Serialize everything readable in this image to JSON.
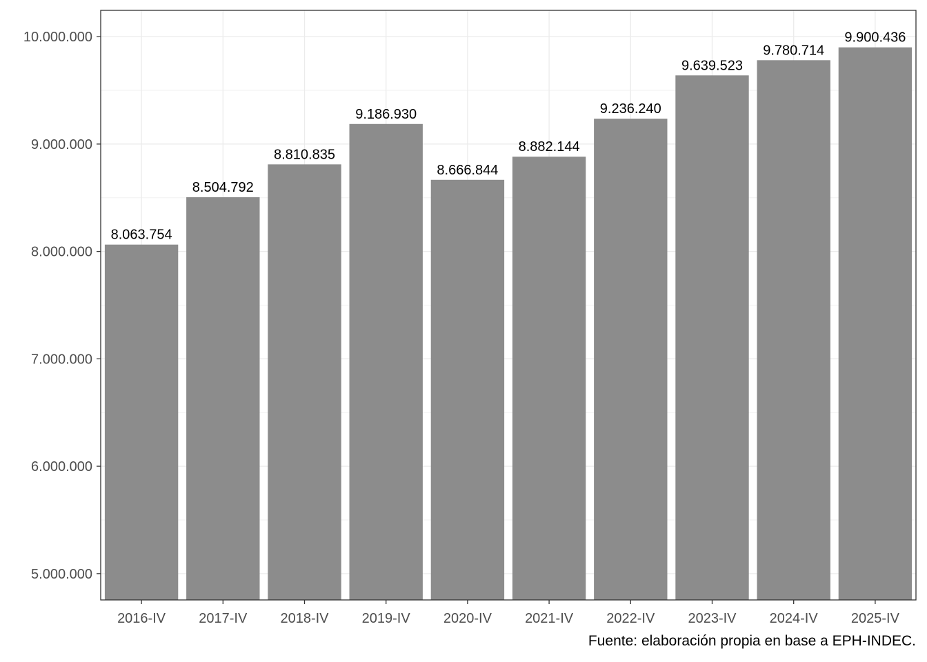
{
  "chart_data": {
    "type": "bar",
    "title": "",
    "xlabel": "",
    "ylabel": "",
    "categories": [
      "2016-IV",
      "2017-IV",
      "2018-IV",
      "2019-IV",
      "2020-IV",
      "2021-IV",
      "2022-IV",
      "2023-IV",
      "2024-IV",
      "2025-IV"
    ],
    "values": [
      8063754,
      8504792,
      8810835,
      9186930,
      8666844,
      8882144,
      9236240,
      9639523,
      9780714,
      9900436
    ],
    "value_labels": [
      "8.063.754",
      "8.504.792",
      "8.810.835",
      "9.186.930",
      "8.666.844",
      "8.882.144",
      "9.236.240",
      "9.639.523",
      "9.780.714",
      "9.900.436"
    ],
    "ylim": [
      4755000,
      10245000
    ],
    "yticks": [
      5000000,
      6000000,
      7000000,
      8000000,
      9000000,
      10000000
    ],
    "ytick_labels": [
      "5.000.000",
      "6.000.000",
      "7.000.000",
      "8.000.000",
      "9.000.000",
      "10.000.000"
    ],
    "grid": true,
    "bar_color": "#8c8c8c",
    "caption": "Fuente: elaboración propia en base a EPH-INDEC."
  }
}
